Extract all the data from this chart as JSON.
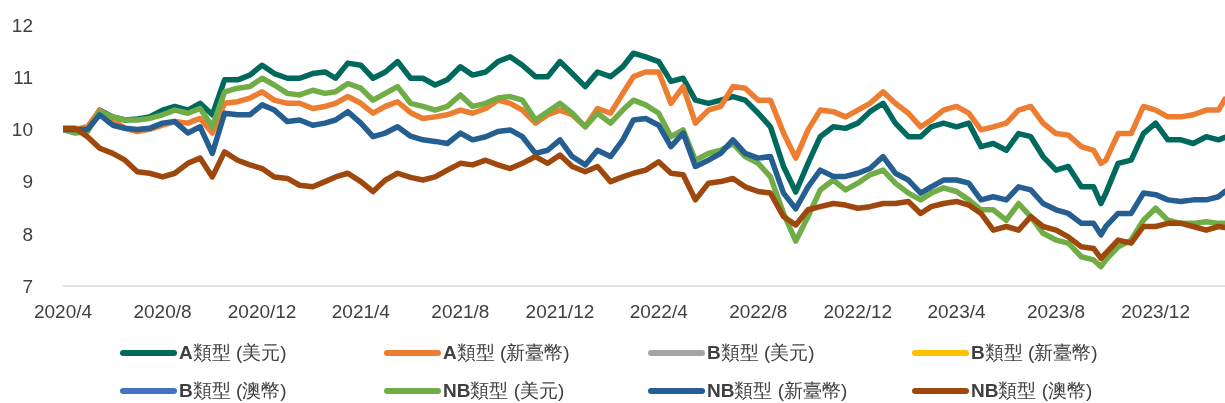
{
  "chart_data": {
    "type": "line",
    "x": [
      "2020-04-01",
      "2020-04-16",
      "2020-05-01",
      "2020-05-16",
      "2020-06-01",
      "2020-06-16",
      "2020-07-01",
      "2020-07-16",
      "2020-08-01",
      "2020-08-16",
      "2020-09-01",
      "2020-09-16",
      "2020-10-01",
      "2020-10-16",
      "2020-11-01",
      "2020-11-16",
      "2020-12-01",
      "2020-12-16",
      "2021-01-01",
      "2021-01-16",
      "2021-02-01",
      "2021-02-16",
      "2021-03-01",
      "2021-03-16",
      "2021-04-01",
      "2021-04-16",
      "2021-05-01",
      "2021-05-16",
      "2021-06-01",
      "2021-06-16",
      "2021-07-01",
      "2021-07-16",
      "2021-08-01",
      "2021-08-16",
      "2021-09-01",
      "2021-09-16",
      "2021-10-01",
      "2021-10-16",
      "2021-11-01",
      "2021-11-16",
      "2021-12-01",
      "2021-12-16",
      "2022-01-01",
      "2022-01-16",
      "2022-02-01",
      "2022-02-16",
      "2022-03-01",
      "2022-03-16",
      "2022-04-01",
      "2022-04-16",
      "2022-05-01",
      "2022-05-16",
      "2022-06-01",
      "2022-06-16",
      "2022-07-01",
      "2022-07-16",
      "2022-08-01",
      "2022-08-16",
      "2022-09-01",
      "2022-09-16",
      "2022-10-01",
      "2022-10-16",
      "2022-11-01",
      "2022-11-16",
      "2022-12-01",
      "2022-12-16",
      "2023-01-01",
      "2023-01-16",
      "2023-02-01",
      "2023-02-16",
      "2023-03-01",
      "2023-03-16",
      "2023-04-01",
      "2023-04-16",
      "2023-05-01",
      "2023-05-16",
      "2023-06-01",
      "2023-06-16",
      "2023-07-01",
      "2023-07-16",
      "2023-08-01",
      "2023-08-16",
      "2023-09-01",
      "2023-09-16",
      "2023-09-25",
      "2023-10-01",
      "2023-10-16",
      "2023-11-01",
      "2023-11-16",
      "2023-12-01",
      "2023-12-16",
      "2024-01-01",
      "2024-01-16",
      "2024-02-01",
      "2024-02-16",
      "2024-02-24"
    ],
    "series": [
      {
        "name": "A類型 (美元)",
        "color": "#00695e",
        "values": [
          10.0,
          9.95,
          10.0,
          10.37,
          10.24,
          10.18,
          10.2,
          10.24,
          10.37,
          10.44,
          10.37,
          10.5,
          10.28,
          10.95,
          10.95,
          11.04,
          11.23,
          11.07,
          10.98,
          10.98,
          11.07,
          11.1,
          10.98,
          11.27,
          11.23,
          10.98,
          11.1,
          11.3,
          10.98,
          10.98,
          10.85,
          10.95,
          11.2,
          11.04,
          11.1,
          11.3,
          11.39,
          11.23,
          11.01,
          11.01,
          11.3,
          11.07,
          10.82,
          11.1,
          11.01,
          11.2,
          11.46,
          11.39,
          11.3,
          10.92,
          10.98,
          10.56,
          10.5,
          10.56,
          10.63,
          10.56,
          10.31,
          10.05,
          9.29,
          8.8,
          9.35,
          9.86,
          10.05,
          10.02,
          10.12,
          10.34,
          10.5,
          10.12,
          9.86,
          9.86,
          10.05,
          10.12,
          10.05,
          10.12,
          9.67,
          9.73,
          9.6,
          9.92,
          9.86,
          9.48,
          9.22,
          9.29,
          8.9,
          8.9,
          8.58,
          8.78,
          9.35,
          9.41,
          9.92,
          10.12,
          9.8,
          9.8,
          9.73,
          9.86,
          9.8,
          9.85
        ]
      },
      {
        "name": "A類型 (新臺幣)",
        "color": "#ed7d31",
        "values": [
          10.0,
          10.0,
          10.05,
          10.37,
          10.18,
          10.02,
          9.96,
          10.0,
          10.08,
          10.15,
          10.12,
          10.21,
          9.93,
          10.5,
          10.53,
          10.6,
          10.72,
          10.56,
          10.5,
          10.5,
          10.4,
          10.44,
          10.5,
          10.63,
          10.5,
          10.31,
          10.44,
          10.53,
          10.32,
          10.21,
          10.24,
          10.28,
          10.37,
          10.31,
          10.4,
          10.56,
          10.5,
          10.37,
          10.12,
          10.28,
          10.37,
          10.28,
          10.05,
          10.4,
          10.31,
          10.69,
          11.01,
          11.1,
          11.1,
          10.5,
          10.82,
          10.12,
          10.37,
          10.44,
          10.82,
          10.79,
          10.56,
          10.56,
          9.93,
          9.45,
          9.99,
          10.37,
          10.34,
          10.24,
          10.37,
          10.5,
          10.72,
          10.5,
          10.31,
          10.05,
          10.18,
          10.37,
          10.44,
          10.31,
          9.99,
          10.05,
          10.12,
          10.37,
          10.44,
          10.12,
          9.92,
          9.89,
          9.67,
          9.6,
          9.35,
          9.41,
          9.92,
          9.92,
          10.44,
          10.37,
          10.24,
          10.24,
          10.28,
          10.37,
          10.37,
          10.58
        ]
      },
      {
        "name": "B類型 (美元)",
        "color": "#a5a5a5",
        "values": [
          null,
          null,
          null,
          null,
          null,
          null,
          null,
          null,
          null,
          null,
          null,
          null,
          null,
          null,
          null,
          null,
          null,
          null,
          null,
          null,
          null,
          null,
          null,
          null,
          null,
          null,
          null,
          null,
          null,
          null,
          null,
          null,
          null,
          null,
          null,
          null,
          null,
          null,
          null,
          null,
          null,
          null,
          null,
          null,
          null,
          null,
          null,
          null,
          null,
          null,
          null,
          null,
          null,
          null,
          null,
          null,
          null,
          null,
          null,
          null,
          null,
          null,
          null,
          null,
          null,
          null,
          null,
          null,
          null,
          null,
          null,
          null,
          null,
          null,
          null,
          null,
          null,
          null,
          null,
          null,
          null,
          null,
          null,
          null,
          null,
          null,
          null,
          null,
          null,
          null,
          null,
          null,
          null,
          null,
          null,
          null
        ]
      },
      {
        "name": "B類型 (新臺幣)",
        "color": "#ffc000",
        "values": [
          null,
          null,
          null,
          null,
          null,
          null,
          null,
          null,
          null,
          null,
          null,
          null,
          null,
          null,
          null,
          null,
          null,
          null,
          null,
          null,
          null,
          null,
          null,
          null,
          null,
          null,
          null,
          null,
          null,
          null,
          null,
          null,
          null,
          null,
          null,
          null,
          null,
          null,
          null,
          null,
          null,
          null,
          null,
          null,
          null,
          null,
          null,
          null,
          null,
          null,
          null,
          null,
          null,
          null,
          null,
          null,
          null,
          null,
          null,
          null,
          null,
          null,
          null,
          null,
          null,
          null,
          null,
          null,
          null,
          null,
          null,
          null,
          null,
          null,
          null,
          null,
          null,
          null,
          null,
          null,
          null,
          null,
          null,
          null,
          null,
          null,
          null,
          null,
          null,
          null,
          null,
          null,
          null,
          null,
          null,
          null
        ]
      },
      {
        "name": "B類型 (澳幣)",
        "color": "#4472c4",
        "values": [
          null,
          null,
          null,
          null,
          null,
          null,
          null,
          null,
          null,
          null,
          null,
          null,
          null,
          null,
          null,
          null,
          null,
          null,
          null,
          null,
          null,
          null,
          null,
          null,
          null,
          null,
          null,
          null,
          null,
          null,
          null,
          null,
          null,
          null,
          null,
          null,
          null,
          null,
          null,
          null,
          null,
          null,
          null,
          null,
          null,
          null,
          null,
          null,
          null,
          null,
          null,
          null,
          null,
          null,
          null,
          null,
          null,
          null,
          null,
          null,
          null,
          null,
          null,
          null,
          null,
          null,
          null,
          null,
          null,
          null,
          null,
          null,
          null,
          null,
          null,
          null,
          null,
          null,
          null,
          null,
          null,
          null,
          null,
          null,
          null,
          null,
          null,
          null,
          null,
          null,
          null,
          null,
          null,
          null,
          null,
          null
        ]
      },
      {
        "name": "NB類型 (美元)",
        "color": "#70ad47",
        "values": [
          10.0,
          9.93,
          9.96,
          10.34,
          10.24,
          10.18,
          10.18,
          10.21,
          10.28,
          10.37,
          10.31,
          10.4,
          10.05,
          10.72,
          10.79,
          10.82,
          10.98,
          10.85,
          10.69,
          10.66,
          10.75,
          10.69,
          10.72,
          10.88,
          10.79,
          10.56,
          10.69,
          10.82,
          10.5,
          10.44,
          10.37,
          10.44,
          10.66,
          10.44,
          10.5,
          10.6,
          10.63,
          10.56,
          10.18,
          10.34,
          10.5,
          10.31,
          10.05,
          10.31,
          10.12,
          10.37,
          10.56,
          10.47,
          10.31,
          9.86,
          9.99,
          9.41,
          9.54,
          9.6,
          9.73,
          9.48,
          9.35,
          9.09,
          8.39,
          7.86,
          8.33,
          8.84,
          9.03,
          8.84,
          8.97,
          9.13,
          9.22,
          8.97,
          8.78,
          8.65,
          8.78,
          8.88,
          8.81,
          8.65,
          8.46,
          8.46,
          8.26,
          8.58,
          8.33,
          8.01,
          7.88,
          7.82,
          7.56,
          7.5,
          7.37,
          7.5,
          7.75,
          7.88,
          8.26,
          8.49,
          8.26,
          8.2,
          8.2,
          8.23,
          8.2,
          8.2
        ]
      },
      {
        "name": "NB類型 (新臺幣)",
        "color": "#255e91",
        "values": [
          10.0,
          10.0,
          10.0,
          10.28,
          10.08,
          10.02,
          10.0,
          10.02,
          10.12,
          10.15,
          9.93,
          10.05,
          9.54,
          10.31,
          10.28,
          10.28,
          10.47,
          10.37,
          10.15,
          10.18,
          10.08,
          10.12,
          10.18,
          10.34,
          10.12,
          9.86,
          9.93,
          10.05,
          9.87,
          9.8,
          9.77,
          9.73,
          9.93,
          9.8,
          9.86,
          9.96,
          9.99,
          9.86,
          9.54,
          9.6,
          9.8,
          9.48,
          9.32,
          9.6,
          9.48,
          9.8,
          10.18,
          10.21,
          10.08,
          9.67,
          9.93,
          9.29,
          9.41,
          9.54,
          9.8,
          9.54,
          9.45,
          9.48,
          8.78,
          8.48,
          8.9,
          9.22,
          9.1,
          9.1,
          9.16,
          9.25,
          9.48,
          9.16,
          9.03,
          8.78,
          8.9,
          9.03,
          9.03,
          8.97,
          8.65,
          8.71,
          8.65,
          8.9,
          8.84,
          8.58,
          8.46,
          8.39,
          8.2,
          8.2,
          7.98,
          8.14,
          8.39,
          8.39,
          8.78,
          8.75,
          8.65,
          8.62,
          8.65,
          8.65,
          8.71,
          8.81
        ]
      },
      {
        "name": "NB類型 (澳幣)",
        "color": "#9e480e",
        "values": [
          10.02,
          10.02,
          9.86,
          9.64,
          9.54,
          9.41,
          9.19,
          9.16,
          9.09,
          9.16,
          9.35,
          9.45,
          9.09,
          9.57,
          9.41,
          9.32,
          9.25,
          9.09,
          9.06,
          8.93,
          8.9,
          9.0,
          9.09,
          9.16,
          9.0,
          8.81,
          9.03,
          9.16,
          9.08,
          9.03,
          9.09,
          9.22,
          9.35,
          9.32,
          9.41,
          9.32,
          9.25,
          9.35,
          9.48,
          9.35,
          9.51,
          9.29,
          9.19,
          9.29,
          9.0,
          9.09,
          9.16,
          9.22,
          9.38,
          9.16,
          9.13,
          8.65,
          8.97,
          9.0,
          9.06,
          8.9,
          8.81,
          8.78,
          8.33,
          8.17,
          8.46,
          8.52,
          8.58,
          8.55,
          8.49,
          8.52,
          8.58,
          8.58,
          8.62,
          8.39,
          8.52,
          8.58,
          8.62,
          8.55,
          8.39,
          8.07,
          8.14,
          8.07,
          8.33,
          8.14,
          8.07,
          7.94,
          7.75,
          7.72,
          7.53,
          7.63,
          7.88,
          7.82,
          8.14,
          8.14,
          8.2,
          8.2,
          8.14,
          8.07,
          8.14,
          8.12
        ]
      }
    ],
    "xlim": [
      "2020-04-01",
      "2024-02-24"
    ],
    "xticks": [
      {
        "value": "2020-04-01",
        "label": "2020/4"
      },
      {
        "value": "2020-08-01",
        "label": "2020/8"
      },
      {
        "value": "2020-12-01",
        "label": "2020/12"
      },
      {
        "value": "2021-04-01",
        "label": "2021/4"
      },
      {
        "value": "2021-08-01",
        "label": "2021/8"
      },
      {
        "value": "2021-12-01",
        "label": "2021/12"
      },
      {
        "value": "2022-04-01",
        "label": "2022/4"
      },
      {
        "value": "2022-08-01",
        "label": "2022/8"
      },
      {
        "value": "2022-12-01",
        "label": "2022/12"
      },
      {
        "value": "2023-04-01",
        "label": "2023/4"
      },
      {
        "value": "2023-08-01",
        "label": "2023/8"
      },
      {
        "value": "2023-12-01",
        "label": "2023/12"
      }
    ],
    "ylim": [
      7,
      12
    ],
    "yticks": [
      7,
      8,
      9,
      10,
      11,
      12
    ],
    "legend": "bottom"
  }
}
